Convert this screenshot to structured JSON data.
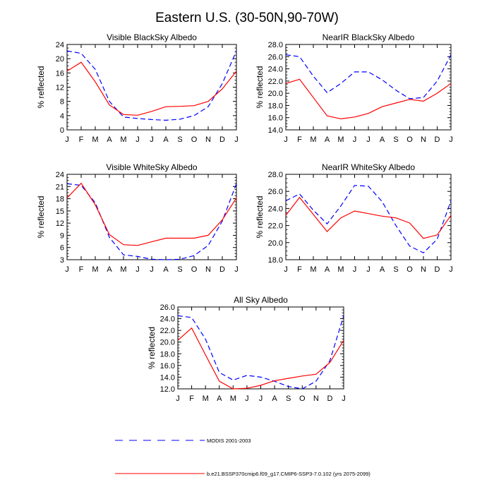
{
  "figure": {
    "title": "Eastern U.S. (30-50N,90-70W)"
  },
  "legend": {
    "placement": "bottom-left",
    "entries": [
      {
        "label": "MODIS 2001-2003",
        "color": "#0000ff",
        "style": "dashed"
      },
      {
        "label": "b.e21.BSSP370cmip6.f09_g17.CMIP6-SSP3-7.0.102 (yrs 2075-2099)",
        "color": "#ff0000",
        "style": "solid"
      }
    ]
  },
  "chart_data": [
    {
      "type": "line",
      "title": "Visible BlackSky Albedo",
      "ylabel": "% reflected",
      "categories": [
        "J",
        "F",
        "M",
        "A",
        "M",
        "J",
        "J",
        "A",
        "S",
        "O",
        "N",
        "D",
        "J"
      ],
      "ylim": [
        0,
        24
      ],
      "yticks": [
        0,
        4,
        8,
        12,
        16,
        20,
        24
      ],
      "ytick_labels": [
        "0",
        "4",
        "8",
        "12",
        "16",
        "20",
        "24"
      ],
      "grid": false,
      "series": [
        {
          "name": "MODIS 2001-2003",
          "color": "#0000ff",
          "style": "dashed",
          "values": [
            22.2,
            21.5,
            17.0,
            8.0,
            3.6,
            3.2,
            2.9,
            2.7,
            3.0,
            4.0,
            6.5,
            13.0,
            22.2
          ]
        },
        {
          "name": "b.e21.BSSP370cmip6.f09_g17.CMIP6-SSP3-7.0.102 (yrs 2075-2099)",
          "color": "#ff0000",
          "style": "solid",
          "values": [
            16.5,
            19.0,
            13.5,
            7.0,
            4.3,
            4.1,
            5.2,
            6.5,
            6.6,
            6.8,
            8.0,
            11.5,
            16.5
          ]
        }
      ]
    },
    {
      "type": "line",
      "title": "NearIR BlackSky Albedo",
      "ylabel": "% reflected",
      "categories": [
        "J",
        "F",
        "M",
        "A",
        "M",
        "J",
        "J",
        "A",
        "S",
        "O",
        "N",
        "D",
        "J"
      ],
      "ylim": [
        14,
        28
      ],
      "yticks": [
        14,
        16,
        18,
        20,
        22,
        24,
        26,
        28
      ],
      "ytick_labels": [
        "14.0",
        "16.0",
        "18.0",
        "20.0",
        "22.0",
        "24.0",
        "26.0",
        "28.0"
      ],
      "grid": false,
      "series": [
        {
          "name": "MODIS 2001-2003",
          "color": "#0000ff",
          "style": "dashed",
          "values": [
            26.3,
            26.0,
            22.8,
            20.1,
            21.6,
            23.5,
            23.5,
            22.2,
            20.5,
            19.1,
            19.3,
            22.0,
            26.3
          ]
        },
        {
          "name": "b.e21.BSSP370cmip6.f09_g17.CMIP6-SSP3-7.0.102 (yrs 2075-2099)",
          "color": "#ff0000",
          "style": "solid",
          "values": [
            21.6,
            22.3,
            19.3,
            16.3,
            15.8,
            16.1,
            16.7,
            17.8,
            18.4,
            19.0,
            18.7,
            20.0,
            21.6
          ]
        }
      ]
    },
    {
      "type": "line",
      "title": "Visible WhiteSky Albedo",
      "ylabel": "% reflected",
      "categories": [
        "J",
        "F",
        "M",
        "A",
        "M",
        "J",
        "J",
        "A",
        "S",
        "O",
        "N",
        "D",
        "J"
      ],
      "ylim": [
        3,
        24
      ],
      "yticks": [
        3,
        6,
        9,
        12,
        15,
        18,
        21,
        24
      ],
      "ytick_labels": [
        "3",
        "6",
        "9",
        "12",
        "15",
        "18",
        "21",
        "24"
      ],
      "grid": false,
      "series": [
        {
          "name": "MODIS 2001-2003",
          "color": "#0000ff",
          "style": "dashed",
          "values": [
            21.7,
            21.3,
            17.0,
            8.5,
            4.2,
            3.8,
            3.1,
            3.0,
            3.1,
            4.0,
            6.5,
            12.5,
            21.7
          ]
        },
        {
          "name": "b.e21.BSSP370cmip6.f09_g17.CMIP6-SSP3-7.0.102 (yrs 2075-2099)",
          "color": "#ff0000",
          "style": "solid",
          "values": [
            18.2,
            21.8,
            16.5,
            9.2,
            6.7,
            6.5,
            7.4,
            8.3,
            8.3,
            8.3,
            9.0,
            12.8,
            18.2
          ]
        }
      ]
    },
    {
      "type": "line",
      "title": "NearIR WhiteSky Albedo",
      "ylabel": "% reflected",
      "categories": [
        "J",
        "F",
        "M",
        "A",
        "M",
        "J",
        "J",
        "A",
        "S",
        "O",
        "N",
        "D",
        "J"
      ],
      "ylim": [
        18,
        28
      ],
      "yticks": [
        18,
        20,
        22,
        24,
        26,
        28
      ],
      "ytick_labels": [
        "18.0",
        "20.0",
        "22.0",
        "24.0",
        "26.0",
        "28.0"
      ],
      "grid": false,
      "series": [
        {
          "name": "MODIS 2001-2003",
          "color": "#0000ff",
          "style": "dashed",
          "values": [
            24.9,
            25.7,
            23.8,
            22.2,
            24.3,
            26.7,
            26.6,
            24.8,
            22.0,
            19.6,
            18.8,
            20.4,
            24.9
          ]
        },
        {
          "name": "b.e21.BSSP370cmip6.f09_g17.CMIP6-SSP3-7.0.102 (yrs 2075-2099)",
          "color": "#ff0000",
          "style": "solid",
          "values": [
            23.2,
            25.3,
            23.3,
            21.3,
            22.9,
            23.7,
            23.4,
            23.1,
            22.9,
            22.3,
            20.5,
            20.9,
            23.2
          ]
        }
      ]
    },
    {
      "type": "line",
      "title": "All Sky Albedo",
      "ylabel": "% reflected",
      "categories": [
        "J",
        "F",
        "M",
        "A",
        "M",
        "J",
        "J",
        "A",
        "S",
        "O",
        "N",
        "D",
        "J"
      ],
      "ylim": [
        12,
        26
      ],
      "yticks": [
        12,
        14,
        16,
        18,
        20,
        22,
        24,
        26
      ],
      "ytick_labels": [
        "12.0",
        "14.0",
        "16.0",
        "18.0",
        "20.0",
        "22.0",
        "24.0",
        "26.0"
      ],
      "grid": false,
      "series": [
        {
          "name": "MODIS 2001-2003",
          "color": "#0000ff",
          "style": "dashed",
          "values": [
            24.5,
            24.2,
            20.5,
            14.8,
            13.5,
            14.3,
            14.0,
            13.3,
            12.4,
            12.0,
            13.3,
            16.8,
            24.5
          ]
        },
        {
          "name": "b.e21.BSSP370cmip6.f09_g17.CMIP6-SSP3-7.0.102 (yrs 2075-2099)",
          "color": "#ff0000",
          "style": "solid",
          "values": [
            20.3,
            22.4,
            17.8,
            13.3,
            12.0,
            12.1,
            12.6,
            13.4,
            13.8,
            14.2,
            14.5,
            16.5,
            20.3
          ]
        }
      ]
    }
  ]
}
